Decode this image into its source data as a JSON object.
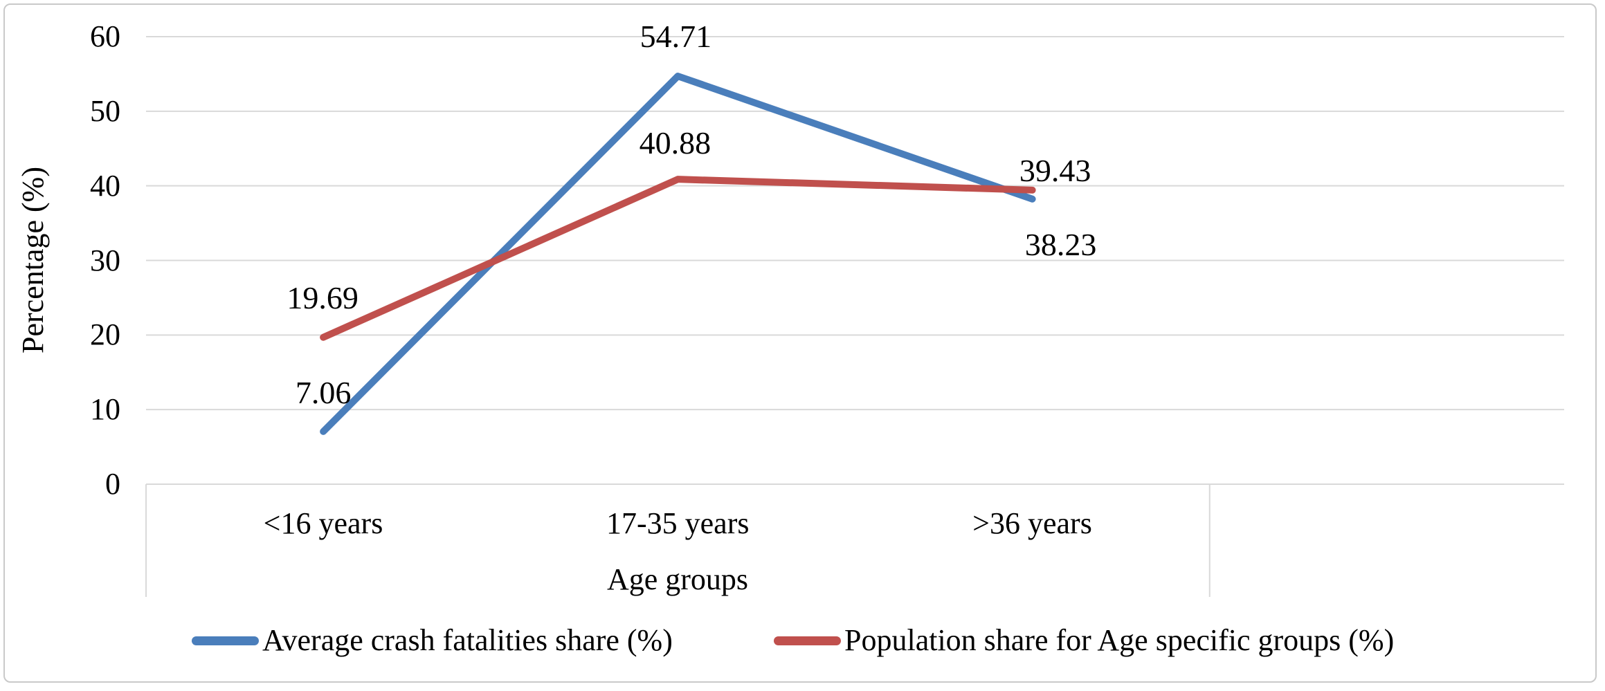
{
  "chart_data": {
    "type": "line",
    "xlabel": "Age groups",
    "ylabel": "Percentage (%)",
    "categories": [
      "<16 years",
      "17-35 years",
      ">36 years"
    ],
    "series": [
      {
        "name": "Average crash fatalities share (%)",
        "color": "#4a7ebb",
        "values": [
          7.06,
          54.71,
          38.23
        ],
        "data_labels": [
          "7.06",
          "54.71",
          "38.23"
        ]
      },
      {
        "name": "Population share for Age specific groups (%)",
        "color": "#c0504d",
        "values": [
          19.69,
          40.88,
          39.43
        ],
        "data_labels": [
          "19.69",
          "40.88",
          "39.43"
        ]
      }
    ],
    "y_axis": {
      "min": 0,
      "max": 60,
      "step": 10,
      "ticks": [
        0,
        10,
        20,
        30,
        40,
        50,
        60
      ]
    },
    "x_slots": 4,
    "grid": "horizontal",
    "legend_position": "bottom",
    "colors": {
      "gridline": "#d9d9d9",
      "axis": "#d9d9d9",
      "frame_border": "#c9c9c9",
      "text": "#000000",
      "background": "#ffffff"
    }
  }
}
